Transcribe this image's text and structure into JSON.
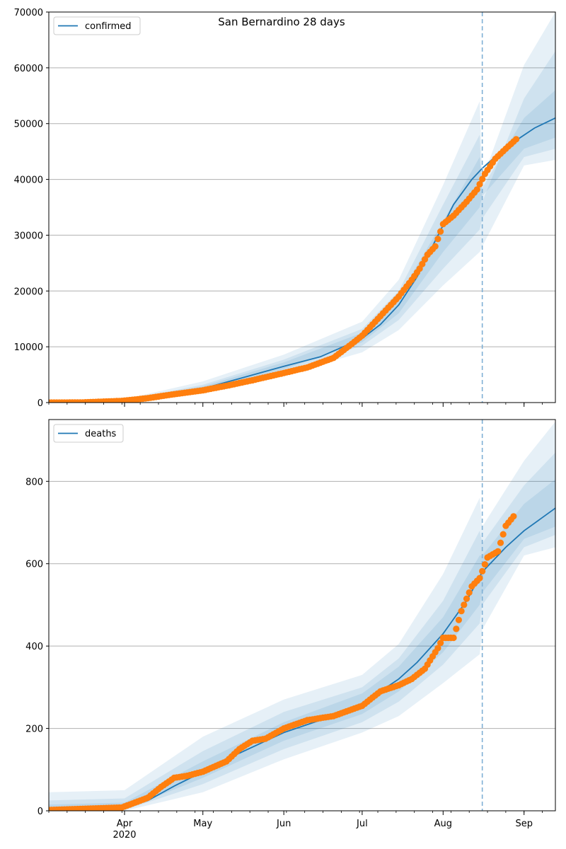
{
  "suptitle": "San Bernardino 28 days",
  "colors": {
    "line": "#1f77b4",
    "points": "#ff7f0e",
    "band": "#1f77b4",
    "grid": "#b0b0b0",
    "vline": "#7fb0d5"
  },
  "chart_data": [
    {
      "type": "line",
      "panel": "top",
      "title": "",
      "ylabel": "",
      "xlabel": "",
      "legend_location": "upper-left",
      "grid": "horizontal",
      "x_range": [
        "2020-03-03",
        "2020-09-13"
      ],
      "ylim": [
        0,
        70000
      ],
      "yticks": [
        0,
        10000,
        20000,
        30000,
        40000,
        50000,
        60000,
        70000
      ],
      "ytick_labels": [
        "0",
        "10000",
        "20000",
        "30000",
        "40000",
        "50000",
        "60000",
        "70000"
      ],
      "xtick_labels": [],
      "forecast_start": "2020-08-16",
      "series": [
        {
          "name": "confirmed",
          "kind": "median-line",
          "x": [
            "2020-03-03",
            "2020-03-31",
            "2020-04-15",
            "2020-05-01",
            "2020-05-15",
            "2020-06-01",
            "2020-06-15",
            "2020-07-01",
            "2020-07-08",
            "2020-07-15",
            "2020-07-22",
            "2020-07-29",
            "2020-08-05",
            "2020-08-12",
            "2020-08-16",
            "2020-08-22",
            "2020-08-29",
            "2020-09-05",
            "2020-09-13"
          ],
          "y": [
            0,
            100,
            1200,
            2500,
            4300,
            6500,
            8200,
            11500,
            14000,
            17500,
            22500,
            29000,
            35500,
            40000,
            42000,
            44500,
            47000,
            49200,
            51000
          ]
        },
        {
          "name": "",
          "kind": "observed-points",
          "x": [
            "2020-03-03",
            "2020-03-15",
            "2020-03-31",
            "2020-04-10",
            "2020-04-20",
            "2020-05-01",
            "2020-05-10",
            "2020-05-20",
            "2020-06-01",
            "2020-06-10",
            "2020-06-20",
            "2020-06-27",
            "2020-07-01",
            "2020-07-05",
            "2020-07-10",
            "2020-07-15",
            "2020-07-20",
            "2020-07-23",
            "2020-07-26",
            "2020-07-29",
            "2020-08-01",
            "2020-08-05",
            "2020-08-10",
            "2020-08-14",
            "2020-08-17",
            "2020-08-21",
            "2020-08-25",
            "2020-08-29"
          ],
          "y": [
            0,
            10,
            300,
            800,
            1500,
            2200,
            3000,
            4000,
            5300,
            6300,
            8000,
            10500,
            12000,
            14000,
            16500,
            19000,
            22000,
            24000,
            26500,
            28000,
            32000,
            33500,
            36000,
            38200,
            41000,
            43700,
            45500,
            47200
          ]
        }
      ],
      "bands": [
        {
          "x": [
            "2020-03-03",
            "2020-04-01",
            "2020-05-01",
            "2020-06-01",
            "2020-07-01",
            "2020-07-15",
            "2020-08-01",
            "2020-08-15",
            "2020-08-16",
            "2020-09-01",
            "2020-09-13"
          ],
          "lower": [
            0,
            50,
            1800,
            5000,
            9000,
            13000,
            21000,
            27000,
            28000,
            42500,
            43500
          ],
          "upper": [
            200,
            600,
            3800,
            8600,
            14500,
            22000,
            39000,
            54000,
            40000,
            60500,
            70000
          ]
        },
        {
          "x": [
            "2020-03-03",
            "2020-04-01",
            "2020-05-01",
            "2020-06-01",
            "2020-07-01",
            "2020-07-15",
            "2020-08-01",
            "2020-08-15",
            "2020-08-16",
            "2020-09-01",
            "2020-09-13"
          ],
          "lower": [
            0,
            80,
            2100,
            5600,
            10200,
            14800,
            24000,
            31000,
            33000,
            44000,
            45500
          ],
          "upper": [
            150,
            450,
            3200,
            7700,
            13200,
            20000,
            35500,
            48000,
            36000,
            54500,
            63000
          ]
        },
        {
          "x": [
            "2020-03-03",
            "2020-04-01",
            "2020-05-01",
            "2020-06-01",
            "2020-07-01",
            "2020-07-15",
            "2020-08-01",
            "2020-08-15",
            "2020-08-16",
            "2020-09-01",
            "2020-09-13"
          ],
          "lower": [
            0,
            100,
            2300,
            6000,
            10800,
            16000,
            27000,
            35000,
            37000,
            45500,
            47500
          ],
          "upper": [
            120,
            350,
            2900,
            7200,
            12500,
            19000,
            32500,
            44000,
            38500,
            51000,
            56000
          ]
        }
      ]
    },
    {
      "type": "line",
      "panel": "bottom",
      "title": "",
      "ylabel": "",
      "xlabel": "",
      "legend_location": "upper-left",
      "grid": "horizontal",
      "x_range": [
        "2020-03-03",
        "2020-09-13"
      ],
      "ylim": [
        0,
        950
      ],
      "yticks": [
        0,
        200,
        400,
        600,
        800
      ],
      "ytick_labels": [
        "0",
        "200",
        "400",
        "600",
        "800"
      ],
      "xtick_labels": [
        "Apr\n2020",
        "May",
        "Jun",
        "Jul",
        "Aug",
        "Sep"
      ],
      "forecast_start": "2020-08-16",
      "series": [
        {
          "name": "deaths",
          "kind": "median-line",
          "x": [
            "2020-03-03",
            "2020-03-31",
            "2020-04-10",
            "2020-04-20",
            "2020-05-01",
            "2020-05-15",
            "2020-06-01",
            "2020-06-15",
            "2020-07-01",
            "2020-07-15",
            "2020-07-22",
            "2020-08-01",
            "2020-08-10",
            "2020-08-16",
            "2020-08-25",
            "2020-09-01",
            "2020-09-13"
          ],
          "y": [
            0,
            5,
            25,
            60,
            95,
            140,
            190,
            220,
            260,
            320,
            360,
            430,
            510,
            580,
            640,
            680,
            735
          ]
        },
        {
          "name": "",
          "kind": "observed-points",
          "x": [
            "2020-03-03",
            "2020-03-31",
            "2020-04-05",
            "2020-04-10",
            "2020-04-15",
            "2020-04-20",
            "2020-04-25",
            "2020-05-01",
            "2020-05-10",
            "2020-05-15",
            "2020-05-20",
            "2020-05-25",
            "2020-06-01",
            "2020-06-10",
            "2020-06-20",
            "2020-07-01",
            "2020-07-08",
            "2020-07-15",
            "2020-07-20",
            "2020-07-25",
            "2020-07-30",
            "2020-08-01",
            "2020-08-05",
            "2020-08-08",
            "2020-08-12",
            "2020-08-15",
            "2020-08-18",
            "2020-08-22",
            "2020-08-25",
            "2020-08-28"
          ],
          "y": [
            2,
            8,
            20,
            32,
            58,
            80,
            85,
            95,
            120,
            150,
            170,
            175,
            200,
            220,
            230,
            255,
            290,
            305,
            320,
            345,
            395,
            420,
            420,
            485,
            545,
            565,
            615,
            630,
            692,
            715
          ]
        }
      ],
      "bands": [
        {
          "x": [
            "2020-03-03",
            "2020-04-01",
            "2020-05-01",
            "2020-06-01",
            "2020-07-01",
            "2020-07-15",
            "2020-08-01",
            "2020-08-15",
            "2020-08-16",
            "2020-09-01",
            "2020-09-13"
          ],
          "lower": [
            0,
            0,
            45,
            125,
            190,
            230,
            310,
            380,
            440,
            620,
            640
          ],
          "upper": [
            45,
            50,
            180,
            270,
            330,
            405,
            575,
            760,
            690,
            850,
            945
          ]
        },
        {
          "x": [
            "2020-03-03",
            "2020-04-01",
            "2020-05-01",
            "2020-06-01",
            "2020-07-01",
            "2020-07-15",
            "2020-08-01",
            "2020-08-15",
            "2020-08-16",
            "2020-09-01",
            "2020-09-13"
          ],
          "lower": [
            0,
            2,
            65,
            150,
            215,
            265,
            355,
            455,
            500,
            640,
            670
          ],
          "upper": [
            25,
            30,
            145,
            240,
            300,
            370,
            510,
            680,
            650,
            790,
            870
          ]
        },
        {
          "x": [
            "2020-03-03",
            "2020-04-01",
            "2020-05-01",
            "2020-06-01",
            "2020-07-01",
            "2020-07-15",
            "2020-08-01",
            "2020-08-15",
            "2020-08-16",
            "2020-09-01",
            "2020-09-13"
          ],
          "lower": [
            0,
            3,
            80,
            170,
            235,
            290,
            385,
            500,
            530,
            660,
            690
          ],
          "upper": [
            15,
            20,
            120,
            215,
            285,
            350,
            470,
            620,
            620,
            745,
            805
          ]
        }
      ]
    }
  ]
}
